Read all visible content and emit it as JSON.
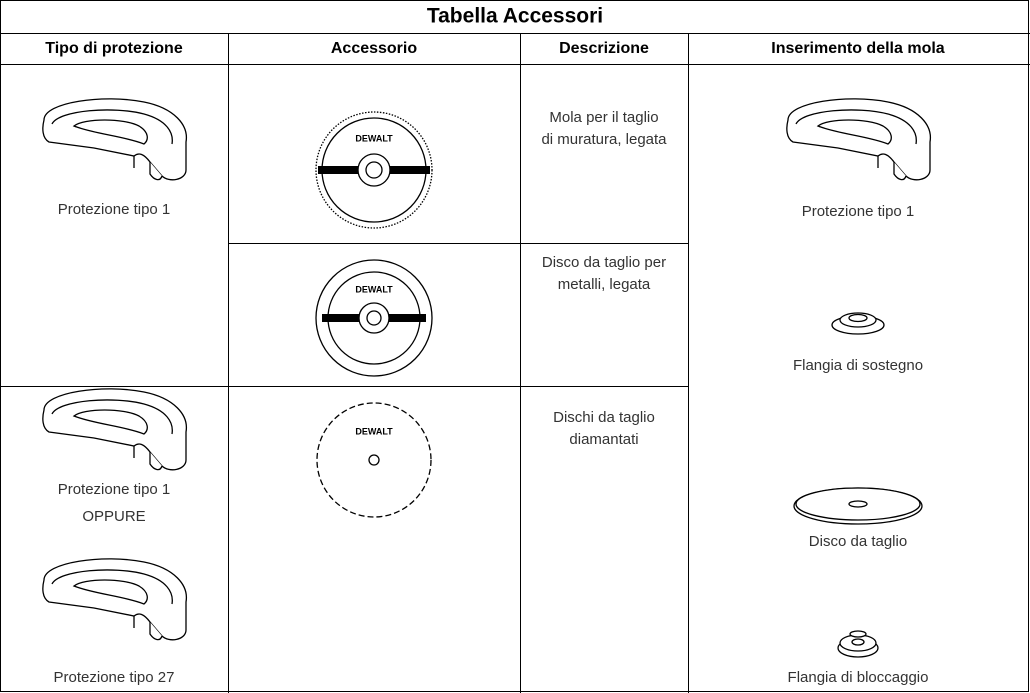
{
  "table": {
    "title": "Tabella Accessori",
    "headers": [
      "Tipo di protezione",
      "Accessorio",
      "Descrizione",
      "Inserimento della mola"
    ],
    "brand": "DEWALT",
    "guard_groups": [
      [
        "Protezione tipo 1"
      ],
      [
        "Protezione tipo 1",
        "OPPURE",
        "Protezione tipo 27"
      ]
    ],
    "descriptions": [
      [
        "Mola per il taglio",
        "di muratura, legata"
      ],
      [
        "Disco da taglio per",
        "metalli, legata"
      ],
      [
        "Dischi da taglio",
        "diamantati"
      ]
    ],
    "assembly": [
      "Protezione tipo 1",
      "Flangia di sostegno",
      "Disco da taglio",
      "Flangia di bloccaggio"
    ]
  }
}
